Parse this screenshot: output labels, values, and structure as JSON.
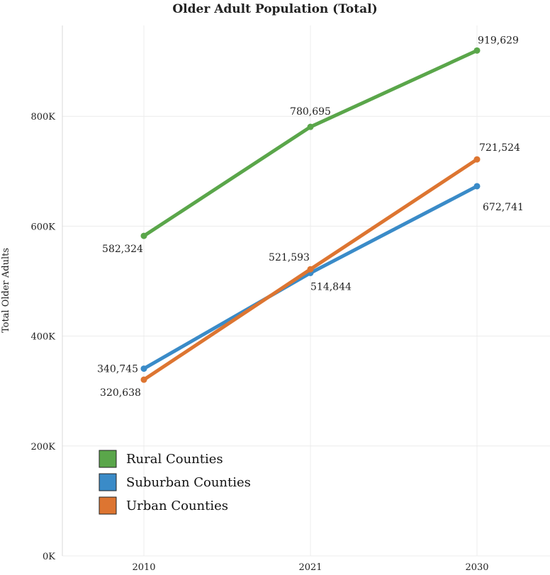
{
  "chart_data": {
    "type": "line",
    "title": "Older Adult Population (Total)",
    "xlabel": "",
    "ylabel": "Total Older Adults",
    "categories": [
      "2010",
      "2021",
      "2030"
    ],
    "ylim": [
      0,
      1000000
    ],
    "yticks": [
      0,
      200000,
      400000,
      600000,
      800000
    ],
    "ytick_labels": [
      "0K",
      "200K",
      "400K",
      "600K",
      "800K"
    ],
    "grid": true,
    "legend_position": "bottom-left",
    "series": [
      {
        "name": "Rural Counties",
        "color": "#5aa64a",
        "values": [
          582324,
          780695,
          919629
        ],
        "labels": [
          "582,324",
          "780,695",
          "919,629"
        ]
      },
      {
        "name": "Suburban Counties",
        "color": "#3a8bc8",
        "values": [
          340745,
          514844,
          672741
        ],
        "labels": [
          "340,745",
          "514,844",
          "672,741"
        ]
      },
      {
        "name": "Urban Counties",
        "color": "#dd7531",
        "values": [
          320638,
          521593,
          721524
        ],
        "labels": [
          "320,638",
          "521,593",
          "721,524"
        ]
      }
    ]
  }
}
